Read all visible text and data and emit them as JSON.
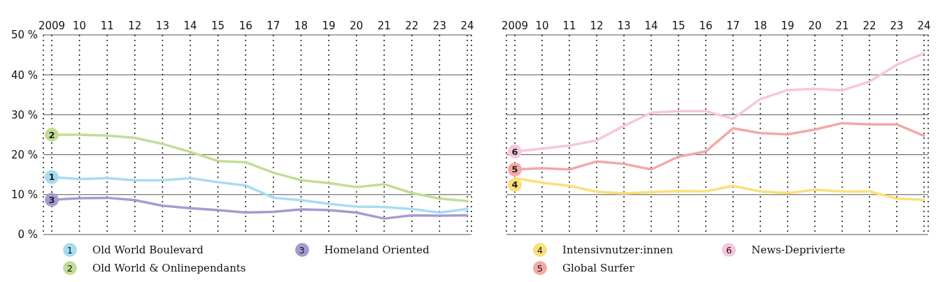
{
  "chart_data": [
    {
      "type": "line",
      "categories": [
        "2009",
        "10",
        "11",
        "12",
        "13",
        "14",
        "15",
        "16",
        "17",
        "18",
        "19",
        "20",
        "21",
        "22",
        "23",
        "24"
      ],
      "series": [
        {
          "name": "Old World Boulevard",
          "color": "#a8dcf0",
          "values": [
            14.4,
            13.9,
            14.1,
            13.6,
            13.6,
            14.1,
            13.1,
            12.3,
            9.2,
            8.6,
            7.7,
            7.0,
            6.9,
            6.4,
            5.5,
            6.4
          ]
        },
        {
          "name": "Old World & Onlinependants",
          "color": "#c3dc96",
          "values": [
            25.0,
            25.0,
            24.8,
            24.2,
            22.7,
            20.7,
            18.4,
            18.1,
            15.5,
            13.6,
            12.9,
            11.9,
            12.6,
            10.4,
            9.0,
            8.4
          ]
        },
        {
          "name": "Homeland Oriented",
          "color": "#a79ad0",
          "values": [
            8.7,
            9.1,
            9.2,
            8.6,
            7.2,
            6.6,
            6.1,
            5.5,
            5.7,
            6.3,
            6.1,
            5.5,
            4.0,
            4.8,
            4.7,
            4.8
          ]
        }
      ],
      "annotations": [
        {
          "text": "1",
          "x": "2009",
          "y": 14.4
        },
        {
          "text": "2",
          "x": "2009",
          "y": 25.0
        },
        {
          "text": "3",
          "x": "2009",
          "y": 8.7
        }
      ],
      "ylim": [
        0,
        50
      ],
      "yticks": [
        {
          "value": 0,
          "label": "0 %"
        },
        {
          "value": 10,
          "label": "10 %"
        },
        {
          "value": 20,
          "label": "20 %"
        },
        {
          "value": 30,
          "label": "30 %"
        },
        {
          "value": 40,
          "label": "40 %"
        },
        {
          "value": 50,
          "label": "50 %"
        }
      ],
      "grid": true,
      "legend": "bottom"
    },
    {
      "type": "line",
      "categories": [
        "2009",
        "10",
        "11",
        "12",
        "13",
        "14",
        "15",
        "16",
        "17",
        "18",
        "19",
        "20",
        "21",
        "22",
        "23",
        "24"
      ],
      "series": [
        {
          "name": "Intensivnutzer:innen",
          "color": "#fbe07a",
          "values": [
            14.1,
            13.0,
            12.2,
            10.7,
            10.3,
            10.6,
            10.9,
            10.8,
            12.2,
            10.8,
            10.4,
            11.2,
            10.8,
            10.8,
            9.0,
            8.7
          ]
        },
        {
          "name": "Global Surfer",
          "color": "#f3a8a4",
          "values": [
            16.3,
            16.6,
            16.3,
            18.3,
            17.7,
            16.3,
            19.5,
            20.8,
            26.6,
            25.4,
            25.1,
            26.3,
            27.9,
            27.6,
            27.6,
            24.7
          ]
        },
        {
          "name": "News-Deprivierte",
          "color": "#f7c5de",
          "values": [
            20.8,
            21.5,
            22.3,
            23.6,
            27.2,
            30.5,
            30.9,
            30.9,
            29.0,
            33.9,
            36.2,
            36.5,
            36.1,
            38.3,
            42.5,
            45.4
          ]
        }
      ],
      "annotations": [
        {
          "text": "4",
          "x": "2009",
          "y": 14.1
        },
        {
          "text": "5",
          "x": "2009",
          "y": 16.3
        },
        {
          "text": "6",
          "x": "2009",
          "y": 20.8
        }
      ],
      "ylim": [
        0,
        50
      ],
      "yticks": [
        0,
        10,
        20,
        30,
        40,
        50
      ],
      "tick_labels": "x",
      "grid": true,
      "legend": "bottom"
    }
  ]
}
